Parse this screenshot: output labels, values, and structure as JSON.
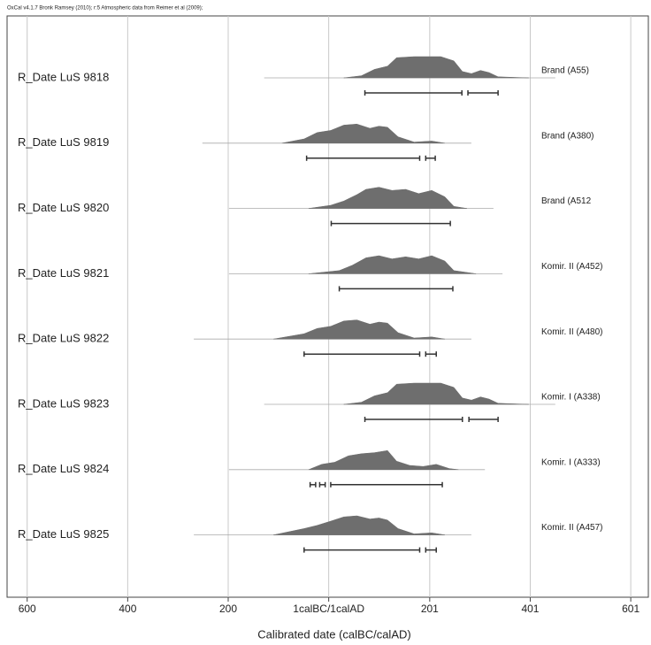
{
  "chart_data": {
    "type": "oxcal-multiplot",
    "header": "OxCal v4.1.7 Bronk Ramsey (2010); r:5 Atmospheric data from Reimer et al (2009);",
    "x_label": "Calibrated date (calBC/calAD)",
    "xlim": [
      -640,
      636
    ],
    "xticks": [
      {
        "value": -600,
        "label": "600"
      },
      {
        "value": -400,
        "label": "400"
      },
      {
        "value": -200,
        "label": "200"
      },
      {
        "value": 0,
        "label": "1calBC/1calAD"
      },
      201,
      401,
      601
    ],
    "grid": true,
    "color": "#6e6e6e",
    "dates": [
      {
        "name": "R_Date LuS 9818",
        "context": "Brand (A55)",
        "ranges": [
          [
            72,
            265
          ],
          [
            277,
            337
          ]
        ],
        "density_x": [
          30,
          65,
          91,
          117,
          135,
          170,
          223,
          249,
          266,
          284,
          302,
          319,
          337,
          398
        ],
        "density": [
          0,
          0.1,
          0.4,
          0.55,
          0.95,
          1,
          1,
          0.8,
          0.3,
          0.2,
          0.35,
          0.25,
          0.05,
          0
        ]
      },
      {
        "name": "R_Date LuS 9819",
        "context": "Brand (A380)",
        "ranges": [
          [
            -44,
            181
          ],
          [
            193,
            212
          ]
        ],
        "density_x": [
          -93,
          -49,
          -23,
          4,
          30,
          56,
          82,
          100,
          117,
          138,
          170,
          205,
          231
        ],
        "density": [
          0,
          0.2,
          0.5,
          0.6,
          0.85,
          0.9,
          0.7,
          0.8,
          0.75,
          0.3,
          0.05,
          0.1,
          0
        ]
      },
      {
        "name": "R_Date LuS 9820",
        "context": "Brand (A512",
        "ranges": [
          [
            5,
            242
          ]
        ],
        "density_x": [
          -40,
          4,
          30,
          56,
          74,
          100,
          126,
          153,
          179,
          205,
          231,
          249,
          275
        ],
        "density": [
          0,
          0.15,
          0.35,
          0.65,
          0.9,
          1,
          0.85,
          0.9,
          0.7,
          0.85,
          0.55,
          0.1,
          0
        ]
      },
      {
        "name": "R_Date LuS 9821",
        "context": "Komir. II (A452)",
        "ranges": [
          [
            21,
            247
          ]
        ],
        "density_x": [
          -40,
          21,
          47,
          74,
          100,
          126,
          153,
          179,
          205,
          231,
          249,
          293
        ],
        "density": [
          0,
          0.15,
          0.4,
          0.75,
          0.85,
          0.7,
          0.8,
          0.7,
          0.85,
          0.6,
          0.15,
          0
        ]
      },
      {
        "name": "R_Date LuS 9822",
        "context": "Komir. II (A480)",
        "ranges": [
          [
            -49,
            181
          ],
          [
            193,
            214
          ]
        ],
        "density_x": [
          -110,
          -49,
          -23,
          4,
          30,
          56,
          82,
          100,
          117,
          138,
          170,
          205,
          231
        ],
        "density": [
          0,
          0.25,
          0.5,
          0.6,
          0.85,
          0.9,
          0.7,
          0.8,
          0.75,
          0.3,
          0.05,
          0.1,
          0
        ]
      },
      {
        "name": "R_Date LuS 9823",
        "context": "Komir. I (A338)",
        "ranges": [
          [
            72,
            266
          ],
          [
            279,
            337
          ]
        ],
        "density_x": [
          30,
          65,
          91,
          117,
          135,
          170,
          223,
          249,
          266,
          284,
          302,
          319,
          337,
          398
        ],
        "density": [
          0,
          0.1,
          0.4,
          0.55,
          0.95,
          1,
          1,
          0.8,
          0.3,
          0.2,
          0.35,
          0.25,
          0.05,
          0
        ]
      },
      {
        "name": "R_Date LuS 9824",
        "context": "Komir. I (A333)",
        "ranges": [
          [
            -37,
            -26
          ],
          [
            -18,
            -7
          ],
          [
            4,
            226
          ]
        ],
        "density_x": [
          -40,
          -14,
          12,
          39,
          65,
          91,
          117,
          135,
          161,
          188,
          214,
          240,
          258
        ],
        "density": [
          0,
          0.25,
          0.35,
          0.65,
          0.75,
          0.8,
          0.9,
          0.4,
          0.2,
          0.15,
          0.25,
          0.05,
          0
        ]
      },
      {
        "name": "R_Date LuS 9825",
        "context": "Komir. II (A457)",
        "ranges": [
          [
            -49,
            181
          ],
          [
            193,
            214
          ]
        ],
        "density_x": [
          -110,
          -49,
          -23,
          4,
          30,
          56,
          82,
          100,
          117,
          138,
          170,
          205,
          231
        ],
        "density": [
          0,
          0.3,
          0.45,
          0.65,
          0.85,
          0.9,
          0.75,
          0.8,
          0.7,
          0.3,
          0.05,
          0.1,
          0
        ]
      }
    ]
  }
}
